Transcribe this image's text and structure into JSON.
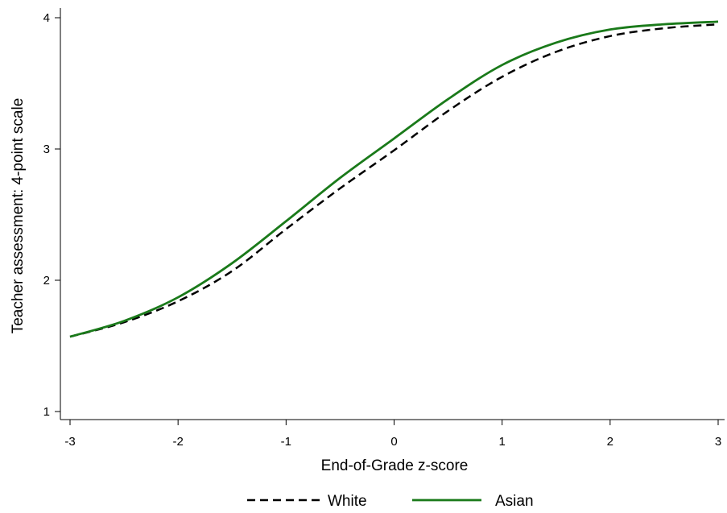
{
  "chart_data": {
    "type": "line",
    "title": "",
    "xlabel": "End-of-Grade z-score",
    "ylabel": "Teacher assessment: 4-point scale",
    "xlim": [
      -3,
      3
    ],
    "ylim": [
      1,
      4
    ],
    "x_ticks": [
      -3,
      -2,
      -1,
      0,
      1,
      2,
      3
    ],
    "y_ticks": [
      1,
      2,
      3,
      4
    ],
    "grid": false,
    "legend_position": "bottom",
    "x": [
      -3,
      -2.5,
      -2,
      -1.5,
      -1,
      -0.5,
      0,
      0.5,
      1,
      1.5,
      2,
      2.5,
      3
    ],
    "series": [
      {
        "name": "White",
        "style": "dashed",
        "color": "#000000",
        "values": [
          1.57,
          1.68,
          1.84,
          2.07,
          2.39,
          2.7,
          2.99,
          3.29,
          3.55,
          3.74,
          3.86,
          3.92,
          3.95
        ]
      },
      {
        "name": "Asian",
        "style": "solid",
        "color": "#1a7a1a",
        "values": [
          1.57,
          1.69,
          1.87,
          2.13,
          2.45,
          2.78,
          3.08,
          3.38,
          3.64,
          3.81,
          3.91,
          3.95,
          3.97
        ]
      }
    ]
  }
}
